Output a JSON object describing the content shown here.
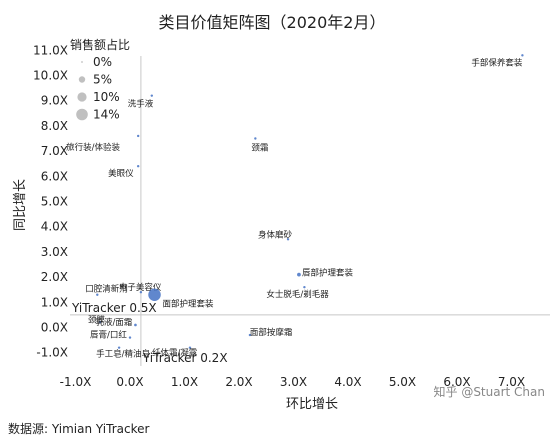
{
  "chart_data": {
    "type": "scatter",
    "title": "类目价值矩阵图（2020年2月）",
    "xlabel": "环比增长",
    "ylabel": "同比增长",
    "xlim": [
      -1.2,
      7.5
    ],
    "ylim": [
      -1.5,
      11.5
    ],
    "x_ticks": [
      "-1.0X",
      "0.0X",
      "1.0X",
      "2.0X",
      "3.0X",
      "4.0X",
      "5.0X",
      "6.0X",
      "7.0X"
    ],
    "y_ticks": [
      "-1.0X",
      "0.0X",
      "1.0X",
      "2.0X",
      "3.0X",
      "4.0X",
      "5.0X",
      "6.0X",
      "7.0X",
      "8.0X",
      "9.0X",
      "10.0X",
      "11.0X"
    ],
    "legend": {
      "title": "销售额占比",
      "placement": "top-left",
      "entries": [
        "0%",
        "5%",
        "10%",
        "14%"
      ]
    },
    "reference_lines": [
      {
        "axis": "y",
        "value": 0.5,
        "label": "YiTracker 0.5X"
      },
      {
        "axis": "x",
        "value": 0.2,
        "label": "YiTracker 0.2X"
      }
    ],
    "points": [
      {
        "label": "手部保养套装",
        "x": 7.2,
        "y": 10.8,
        "share": 0.2
      },
      {
        "label": "洗手液",
        "x": 0.4,
        "y": 9.2,
        "share": 0.4
      },
      {
        "label": "旅行装/体验装",
        "x": 0.15,
        "y": 7.6,
        "share": 0.2
      },
      {
        "label": "颈霜",
        "x": 2.3,
        "y": 7.5,
        "share": 0.2
      },
      {
        "label": "美眼仪",
        "x": 0.15,
        "y": 6.4,
        "share": 0.1
      },
      {
        "label": "身体磨砂",
        "x": 2.9,
        "y": 3.5,
        "share": 0.2
      },
      {
        "label": "唇部护理套装",
        "x": 3.1,
        "y": 2.1,
        "share": 1.2
      },
      {
        "label": "女士脱毛/剃毛器",
        "x": 3.2,
        "y": 1.6,
        "share": 0.2
      },
      {
        "label": "电子美容仪",
        "x": 0.2,
        "y": 1.4,
        "share": 0.2
      },
      {
        "label": "口腔清新剂",
        "x": -0.6,
        "y": 1.3,
        "share": 0.1
      },
      {
        "label": "面部护理套装",
        "x": 0.45,
        "y": 1.3,
        "share": 13.5
      },
      {
        "label": "颈膜",
        "x": -0.55,
        "y": 0.2,
        "share": 0.1
      },
      {
        "label": "乳液/面霜",
        "x": 0.1,
        "y": 0.1,
        "share": 0.6
      },
      {
        "label": "唇膏/口红",
        "x": 0.0,
        "y": -0.4,
        "share": 0.3
      },
      {
        "label": "面部按摩霜",
        "x": 2.2,
        "y": -0.3,
        "share": 0.1
      },
      {
        "label": "手工皂/精油皂",
        "x": -0.2,
        "y": -0.8,
        "share": 0.1
      },
      {
        "label": "纤体霜/凝露",
        "x": 1.1,
        "y": -0.8,
        "share": 0.1
      }
    ]
  },
  "source_text": "数据源: Yimian YiTracker",
  "watermark": "知乎 @Stuart Chan",
  "colors": {
    "point": "#4472c4",
    "legend_circle": "#c0c0c0",
    "ref_line": "#c8c8c8",
    "grid_zero": "#d9d9d9"
  }
}
